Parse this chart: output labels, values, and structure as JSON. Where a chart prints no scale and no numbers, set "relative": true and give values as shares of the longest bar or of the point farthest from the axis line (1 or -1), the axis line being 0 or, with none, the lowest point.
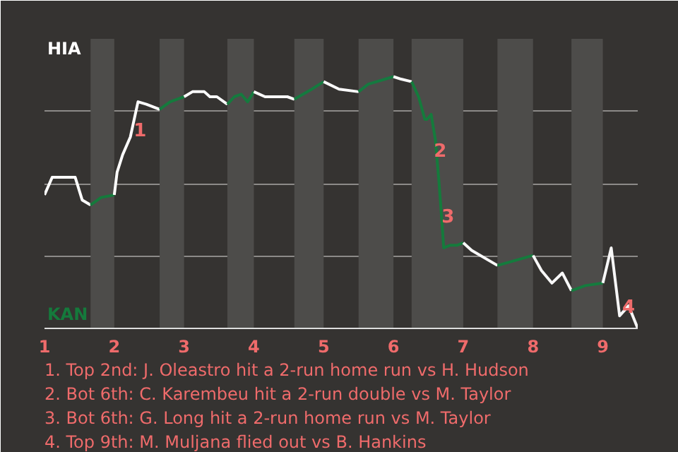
{
  "chart_data": {
    "type": "line",
    "relative": true,
    "xlim": [
      1,
      9.5
    ],
    "xticks": [
      1,
      2,
      3,
      4,
      5,
      6,
      7,
      8,
      9
    ],
    "grid": "y",
    "line_style": "solid",
    "marker": "none",
    "bands": [
      {
        "axis": "x",
        "from": 1.66,
        "to": 2,
        "color": "#4d4c4a"
      },
      {
        "axis": "x",
        "from": 2.65,
        "to": 3,
        "color": "#4d4c4a"
      },
      {
        "axis": "x",
        "from": 3.62,
        "to": 4,
        "color": "#4d4c4a"
      },
      {
        "axis": "x",
        "from": 4.58,
        "to": 5,
        "color": "#4d4c4a"
      },
      {
        "axis": "x",
        "from": 5.5,
        "to": 6,
        "color": "#4d4c4a"
      },
      {
        "axis": "x",
        "from": 6.26,
        "to": 7,
        "color": "#4d4c4a"
      },
      {
        "axis": "x",
        "from": 7.49,
        "to": 8,
        "color": "#4d4c4a"
      },
      {
        "axis": "x",
        "from": 8.55,
        "to": 9,
        "color": "#4d4c4a"
      }
    ],
    "series": [
      {
        "color": "#ffffff",
        "x": [
          1,
          1.11,
          1.44,
          1.54,
          1.66
        ],
        "values": [
          0.53,
          0.6,
          0.6,
          0.51,
          0.49
        ]
      },
      {
        "color": "#157a3c",
        "x": [
          1.66,
          1.81,
          2
        ],
        "values": [
          0.49,
          0.52,
          0.53
        ]
      },
      {
        "color": "#fefefe",
        "x": [
          2,
          2.04,
          2.12,
          2.23,
          2.34,
          2.46,
          2.65
        ],
        "values": [
          0.53,
          0.62,
          0.69,
          0.76,
          0.9,
          0.89,
          0.87
        ]
      },
      {
        "color": "#157a3d",
        "x": [
          2.65,
          2.8,
          3
        ],
        "values": [
          0.87,
          0.9,
          0.92
        ]
      },
      {
        "color": "#fdfdfd",
        "x": [
          3,
          3.12,
          3.29,
          3.37,
          3.47,
          3.62
        ],
        "values": [
          0.92,
          0.94,
          0.94,
          0.92,
          0.92,
          0.89
        ]
      },
      {
        "color": "#157a3e",
        "x": [
          3.62,
          3.72,
          3.82,
          3.91,
          4
        ],
        "values": [
          0.89,
          0.92,
          0.93,
          0.9,
          0.94
        ]
      },
      {
        "color": "#fcfcfc",
        "x": [
          4,
          4.16,
          4.32,
          4.48,
          4.58
        ],
        "values": [
          0.94,
          0.92,
          0.92,
          0.92,
          0.91
        ]
      },
      {
        "color": "#157a3f",
        "x": [
          4.58,
          4.83,
          5
        ],
        "values": [
          0.91,
          0.95,
          0.98
        ]
      },
      {
        "color": "#fbfbfb",
        "x": [
          5,
          5.22,
          5.5
        ],
        "values": [
          0.98,
          0.95,
          0.94
        ]
      },
      {
        "color": "#157a40",
        "x": [
          5.5,
          5.64,
          6
        ],
        "values": [
          0.94,
          0.97,
          1
        ]
      },
      {
        "color": "#fafafa",
        "x": [
          6,
          6.11,
          6.26
        ],
        "values": [
          1,
          0.99,
          0.98
        ]
      },
      {
        "color": "#157b3c",
        "x": [
          6.26,
          6.36,
          6.45,
          6.48,
          6.54,
          6.6,
          6.65,
          6.69,
          6.72,
          6.81,
          6.91,
          7
        ],
        "values": [
          0.98,
          0.92,
          0.83,
          0.83,
          0.85,
          0.75,
          0.59,
          0.44,
          0.32,
          0.33,
          0.33,
          0.34
        ]
      },
      {
        "color": "#f9f9f9",
        "x": [
          7,
          7.12,
          7.49
        ],
        "values": [
          0.34,
          0.31,
          0.25
        ]
      },
      {
        "color": "#157b3d",
        "x": [
          7.49,
          8
        ],
        "values": [
          0.25,
          0.29
        ]
      },
      {
        "color": "#f8f8f8",
        "x": [
          8,
          8.12,
          8.27,
          8.42,
          8.55
        ],
        "values": [
          0.29,
          0.23,
          0.18,
          0.22,
          0.15
        ]
      },
      {
        "color": "#157b3e",
        "x": [
          8.55,
          8.75,
          9
        ],
        "values": [
          0.15,
          0.17,
          0.18
        ]
      },
      {
        "color": "#f7f7f7",
        "x": [
          9,
          9.12,
          9.24,
          9.37,
          9.5
        ],
        "values": [
          0.18,
          0.32,
          0.05,
          0.09,
          0
        ]
      }
    ],
    "annotations": [
      "HIA",
      "KAN",
      {
        "text": "1",
        "x": 2.37,
        "y": 0.79
      },
      {
        "text": "2",
        "x": 6.67,
        "y": 0.71
      },
      {
        "text": "3",
        "x": 6.78,
        "y": 0.45
      },
      {
        "text": "4",
        "x": 9.37,
        "y": 0.09
      },
      "1. Top 2nd: J. Oleastro hit a 2-run home run vs H. Hudson",
      "2. Bot 6th: C. Karembeu hit a 2-run double vs M. Taylor",
      "3. Bot 6th: G. Long hit a 2-run home run vs M. Taylor",
      "4. Top 9th: M. Muljana flied out vs B. Hankins"
    ]
  }
}
